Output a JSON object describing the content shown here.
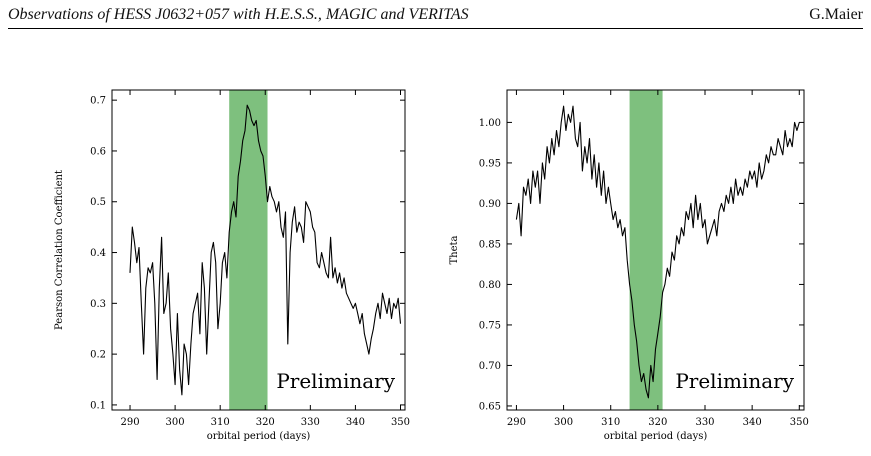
{
  "header": {
    "title": "Observations of HESS J0632+057 with H.E.S.S., MAGIC and VERITAS",
    "author": "G.Maier"
  },
  "chart_data": [
    {
      "type": "line",
      "xlabel": "orbital period (days)",
      "ylabel": "Pearson Correlation Coefficient",
      "xlim": [
        286,
        351
      ],
      "ylim": [
        0.09,
        0.72
      ],
      "xticks": [
        290,
        300,
        310,
        320,
        330,
        340,
        350
      ],
      "yticks": [
        0.1,
        0.2,
        0.3,
        0.4,
        0.5,
        0.6,
        0.7
      ],
      "ytick_decimals": 1,
      "shaded_region": {
        "x_start": 312,
        "x_end": 320.5,
        "color": "#7ec07e"
      },
      "annotation": "Preliminary",
      "grid": false,
      "series": [
        {
          "x": [
            290,
            290.5,
            291,
            291.5,
            292,
            292.5,
            293,
            293.5,
            294,
            294.5,
            295,
            295.5,
            296,
            296.5,
            297,
            297.5,
            298,
            298.5,
            299,
            299.5,
            300,
            300.5,
            301,
            301.5,
            302,
            302.5,
            303,
            303.5,
            304,
            304.5,
            305,
            305.5,
            306,
            306.5,
            307,
            307.5,
            308,
            308.5,
            309,
            309.5,
            310,
            310.5,
            311,
            311.5,
            312,
            312.5,
            313,
            313.5,
            314,
            314.5,
            315,
            315.5,
            316,
            316.5,
            317,
            317.5,
            318,
            318.5,
            319,
            319.5,
            320,
            320.5,
            321,
            321.5,
            322,
            322.5,
            323,
            323.5,
            324,
            324.5,
            325,
            325.5,
            326,
            326.5,
            327,
            327.5,
            328,
            328.5,
            329,
            329.5,
            330,
            330.5,
            331,
            331.5,
            332,
            332.5,
            333,
            333.5,
            334,
            334.5,
            335,
            335.5,
            336,
            336.5,
            337,
            337.5,
            338,
            338.5,
            339,
            339.5,
            340,
            340.5,
            341,
            341.5,
            342,
            342.5,
            343,
            343.5,
            344,
            344.5,
            345,
            345.5,
            346,
            346.5,
            347,
            347.5,
            348,
            348.5,
            349,
            349.5,
            350
          ],
          "y": [
            0.36,
            0.45,
            0.42,
            0.38,
            0.41,
            0.3,
            0.2,
            0.33,
            0.37,
            0.36,
            0.38,
            0.3,
            0.15,
            0.33,
            0.43,
            0.28,
            0.3,
            0.36,
            0.25,
            0.2,
            0.14,
            0.28,
            0.17,
            0.12,
            0.22,
            0.2,
            0.14,
            0.22,
            0.28,
            0.3,
            0.32,
            0.24,
            0.38,
            0.33,
            0.2,
            0.3,
            0.4,
            0.42,
            0.38,
            0.25,
            0.3,
            0.38,
            0.4,
            0.35,
            0.44,
            0.48,
            0.5,
            0.47,
            0.55,
            0.58,
            0.62,
            0.64,
            0.69,
            0.68,
            0.66,
            0.65,
            0.66,
            0.62,
            0.6,
            0.59,
            0.55,
            0.5,
            0.53,
            0.51,
            0.5,
            0.48,
            0.5,
            0.45,
            0.43,
            0.48,
            0.22,
            0.4,
            0.46,
            0.49,
            0.44,
            0.46,
            0.45,
            0.42,
            0.5,
            0.49,
            0.48,
            0.45,
            0.44,
            0.38,
            0.37,
            0.4,
            0.38,
            0.36,
            0.35,
            0.43,
            0.35,
            0.37,
            0.34,
            0.36,
            0.33,
            0.35,
            0.32,
            0.31,
            0.3,
            0.29,
            0.3,
            0.28,
            0.26,
            0.28,
            0.24,
            0.22,
            0.2,
            0.23,
            0.25,
            0.28,
            0.3,
            0.27,
            0.32,
            0.3,
            0.28,
            0.31,
            0.27,
            0.3,
            0.29,
            0.31,
            0.26
          ]
        }
      ]
    },
    {
      "type": "line",
      "xlabel": "orbital period (days)",
      "ylabel": "Theta",
      "xlim": [
        288,
        351
      ],
      "ylim": [
        0.645,
        1.04
      ],
      "xticks": [
        290,
        300,
        310,
        320,
        330,
        340,
        350
      ],
      "yticks": [
        0.65,
        0.7,
        0.75,
        0.8,
        0.85,
        0.9,
        0.95,
        1.0
      ],
      "ytick_decimals": 2,
      "shaded_region": {
        "x_start": 314,
        "x_end": 321,
        "color": "#7ec07e"
      },
      "annotation": "Preliminary",
      "grid": false,
      "series": [
        {
          "x": [
            290,
            290.5,
            291,
            291.5,
            292,
            292.5,
            293,
            293.5,
            294,
            294.5,
            295,
            295.5,
            296,
            296.5,
            297,
            297.5,
            298,
            298.5,
            299,
            299.5,
            300,
            300.5,
            301,
            301.5,
            302,
            302.5,
            303,
            303.5,
            304,
            304.5,
            305,
            305.5,
            306,
            306.5,
            307,
            307.5,
            308,
            308.5,
            309,
            309.5,
            310,
            310.5,
            311,
            311.5,
            312,
            312.5,
            313,
            313.5,
            314,
            314.5,
            315,
            315.5,
            316,
            316.5,
            317,
            317.5,
            318,
            318.5,
            319,
            319.5,
            320,
            320.5,
            321,
            321.5,
            322,
            322.5,
            323,
            323.5,
            324,
            324.5,
            325,
            325.5,
            326,
            326.5,
            327,
            327.5,
            328,
            328.5,
            329,
            329.5,
            330,
            330.5,
            331,
            331.5,
            332,
            332.5,
            333,
            333.5,
            334,
            334.5,
            335,
            335.5,
            336,
            336.5,
            337,
            337.5,
            338,
            338.5,
            339,
            339.5,
            340,
            340.5,
            341,
            341.5,
            342,
            342.5,
            343,
            343.5,
            344,
            344.5,
            345,
            345.5,
            346,
            346.5,
            347,
            347.5,
            348,
            348.5,
            349,
            349.5,
            350
          ],
          "y": [
            0.88,
            0.9,
            0.86,
            0.92,
            0.91,
            0.93,
            0.9,
            0.94,
            0.92,
            0.94,
            0.9,
            0.95,
            0.93,
            0.97,
            0.95,
            0.98,
            0.96,
            0.99,
            0.97,
            1.0,
            1.02,
            0.99,
            1.01,
            1.0,
            1.02,
            0.98,
            0.97,
            1.0,
            0.94,
            0.97,
            0.95,
            0.98,
            0.93,
            0.96,
            0.92,
            0.95,
            0.91,
            0.94,
            0.9,
            0.92,
            0.9,
            0.88,
            0.89,
            0.87,
            0.88,
            0.86,
            0.87,
            0.83,
            0.8,
            0.78,
            0.75,
            0.73,
            0.7,
            0.68,
            0.69,
            0.67,
            0.66,
            0.7,
            0.68,
            0.72,
            0.74,
            0.76,
            0.79,
            0.8,
            0.82,
            0.81,
            0.84,
            0.83,
            0.86,
            0.85,
            0.87,
            0.86,
            0.89,
            0.88,
            0.9,
            0.87,
            0.91,
            0.88,
            0.9,
            0.87,
            0.88,
            0.85,
            0.86,
            0.87,
            0.88,
            0.86,
            0.89,
            0.9,
            0.89,
            0.91,
            0.9,
            0.92,
            0.9,
            0.93,
            0.91,
            0.92,
            0.91,
            0.93,
            0.92,
            0.94,
            0.93,
            0.94,
            0.92,
            0.95,
            0.93,
            0.94,
            0.96,
            0.95,
            0.97,
            0.96,
            0.96,
            0.98,
            0.97,
            0.96,
            0.99,
            0.97,
            0.98,
            0.97,
            1.0,
            0.99,
            1.0
          ]
        }
      ]
    }
  ]
}
